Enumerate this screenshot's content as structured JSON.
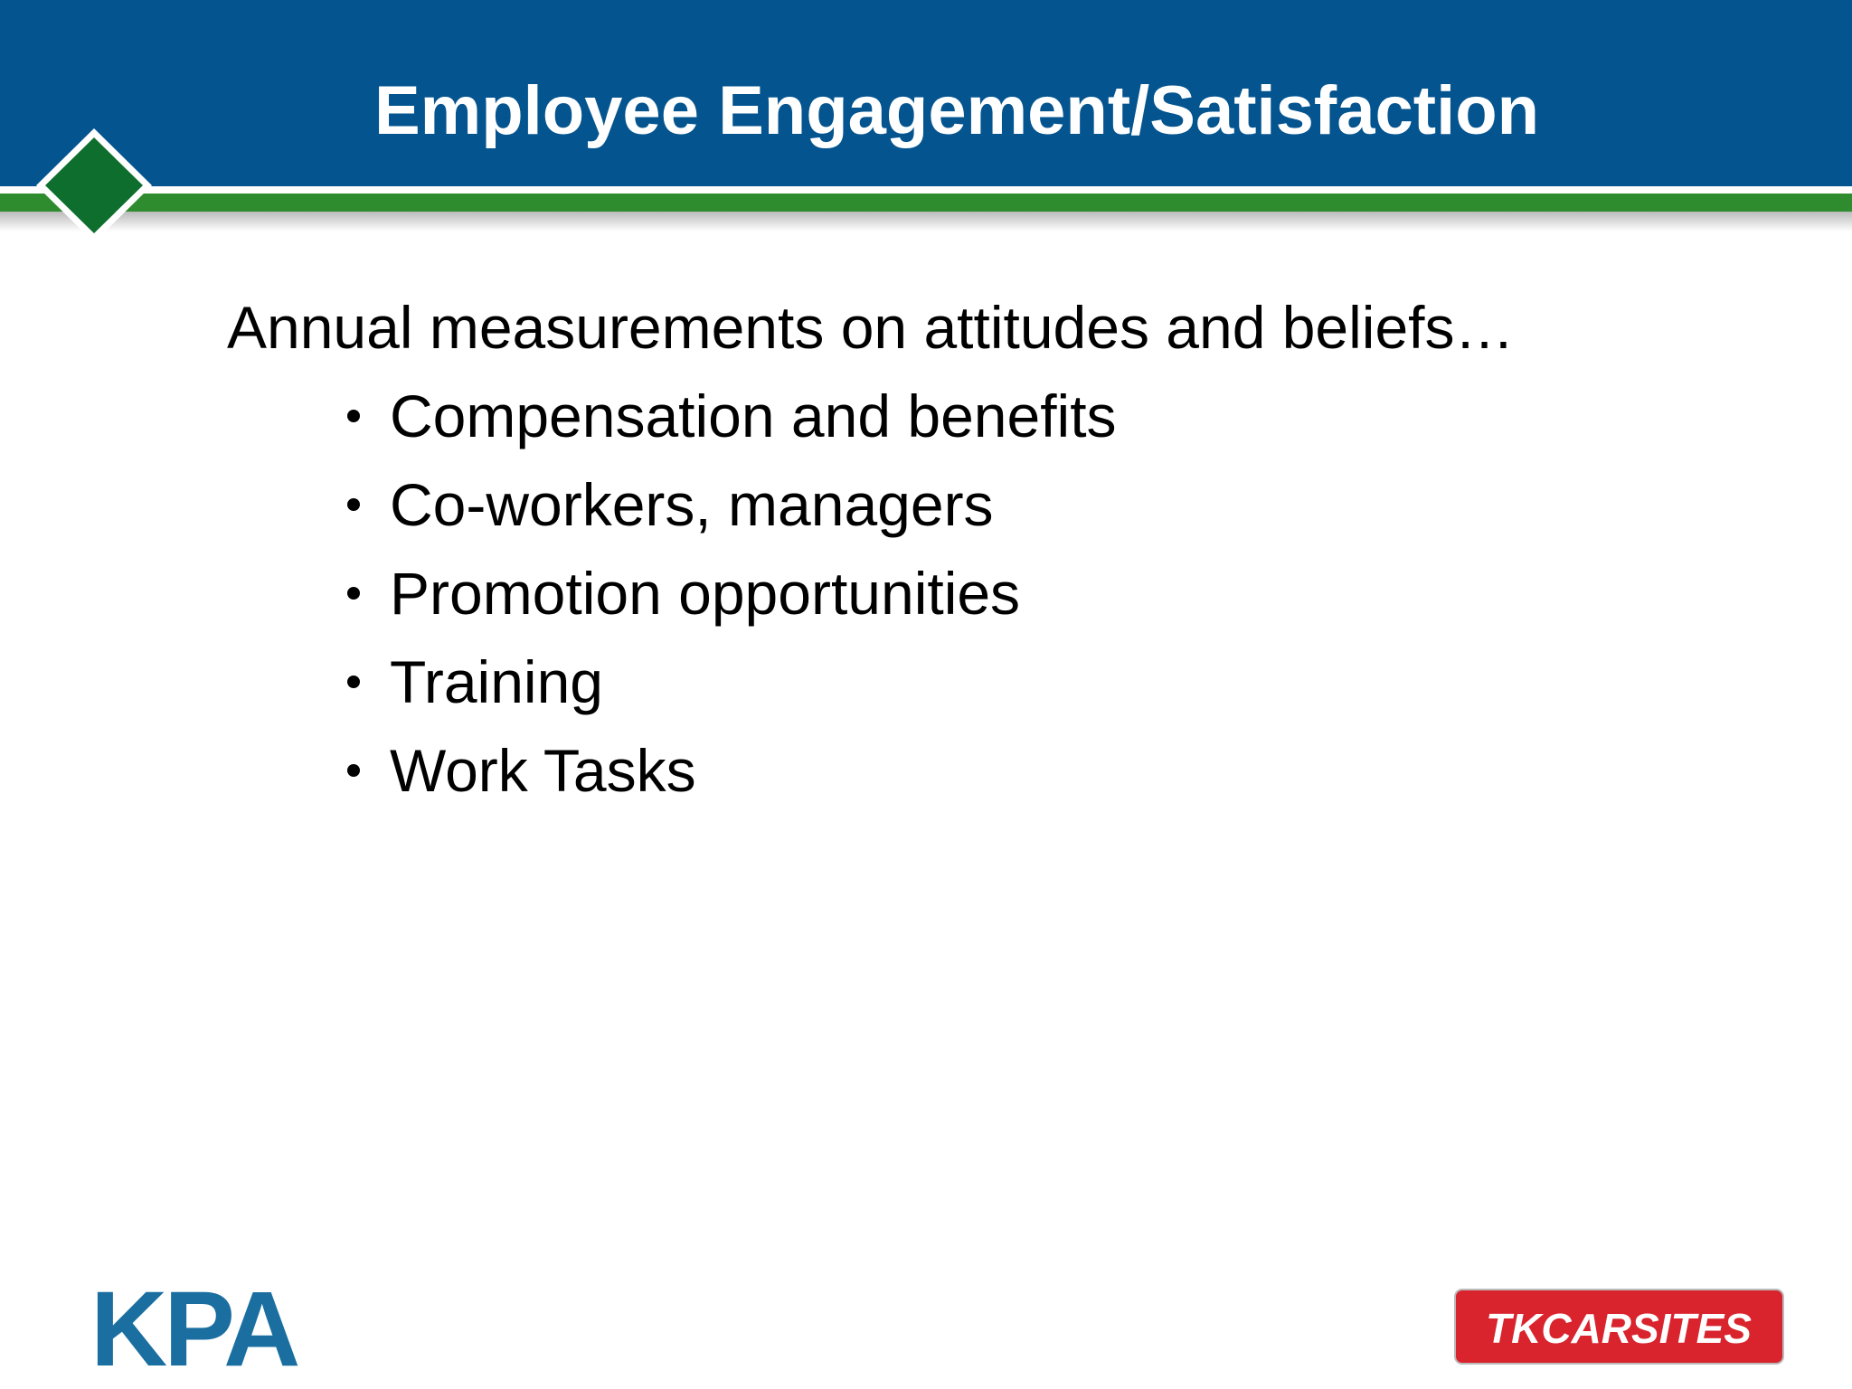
{
  "header": {
    "title": "Employee Engagement/Satisfaction"
  },
  "body": {
    "intro": "Annual measurements on attitudes and beliefs…",
    "bullets": [
      "Compensation and benefits",
      "Co-workers, managers",
      "Promotion opportunities",
      "Training",
      "Work Tasks"
    ]
  },
  "footer": {
    "left_logo": "KPA",
    "right_logo": "TKCARSITES"
  }
}
